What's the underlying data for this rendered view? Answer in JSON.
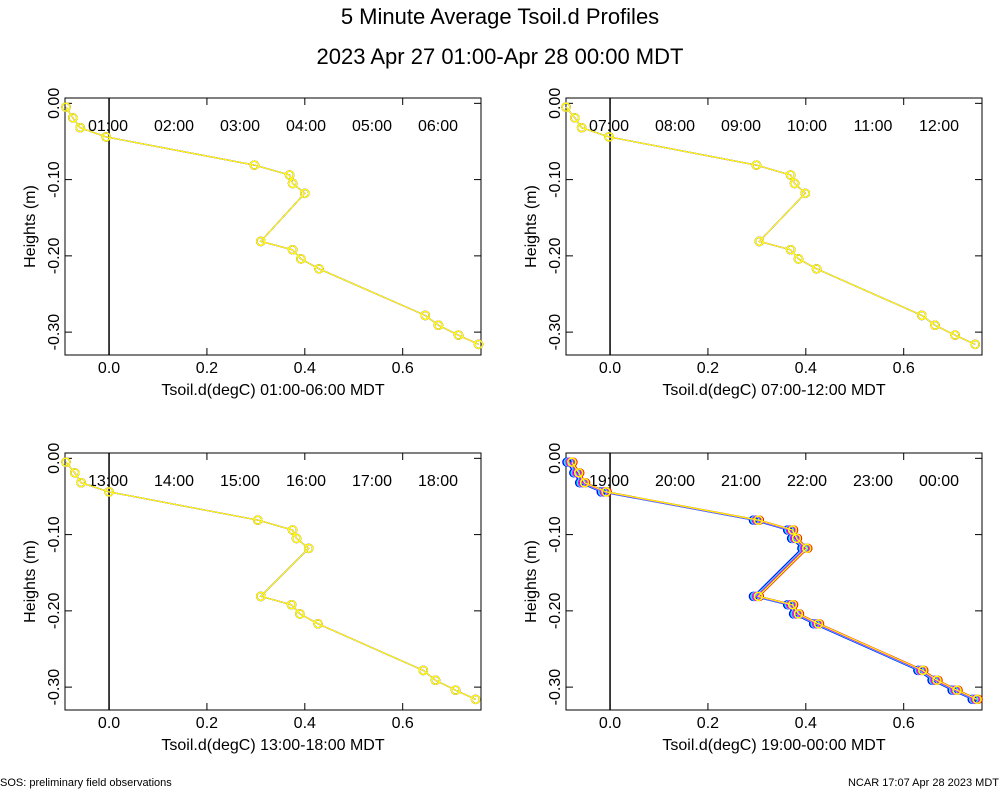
{
  "page": {
    "title": "5 Minute Average Tsoil.d Profiles",
    "subtitle": "2023 Apr 27 01:00-Apr 28 00:00 MDT",
    "footer_left": "SOS: preliminary field observations",
    "footer_right": "NCAR 17:07 Apr 28 2023 MDT"
  },
  "chart_data": [
    {
      "type": "line",
      "xlabel": "Tsoil.d(degC) 01:00-06:00 MDT",
      "ylabel": "Heights (m)",
      "xlim": [
        -0.09,
        0.76
      ],
      "ylim": [
        -0.33,
        0.007
      ],
      "xticks": [
        {
          "value": 0,
          "label": "0.0"
        },
        0.2,
        0.4,
        0.6
      ],
      "yticks": [
        {
          "value": 0,
          "label": "0.00"
        },
        {
          "value": -0.1,
          "label": "-0.10"
        },
        {
          "value": -0.2,
          "label": "-0.20"
        },
        {
          "value": -0.3,
          "label": "-0.30"
        }
      ],
      "zero_line": true,
      "y": [
        -0.005,
        -0.019,
        -0.032,
        -0.044,
        -0.081,
        -0.094,
        -0.105,
        -0.118,
        -0.181,
        -0.192,
        -0.204,
        -0.217,
        -0.278,
        -0.291,
        -0.304,
        -0.316
      ],
      "series": [
        {
          "name": "01:00",
          "color": "#ff0000",
          "x": [
            -0.088,
            -0.074,
            -0.059,
            -0.006,
            0.297,
            0.369,
            0.375,
            0.4,
            0.31,
            0.375,
            0.392,
            0.429,
            0.646,
            0.673,
            0.714,
            0.755
          ]
        },
        {
          "name": "02:00",
          "color": "#00cc00",
          "x": [
            -0.088,
            -0.074,
            -0.059,
            -0.006,
            0.297,
            0.369,
            0.375,
            0.4,
            0.31,
            0.375,
            0.392,
            0.429,
            0.646,
            0.673,
            0.714,
            0.755
          ]
        },
        {
          "name": "03:00",
          "color": "#0000ff",
          "x": [
            -0.088,
            -0.074,
            -0.059,
            -0.006,
            0.297,
            0.369,
            0.375,
            0.4,
            0.31,
            0.375,
            0.392,
            0.429,
            0.646,
            0.673,
            0.714,
            0.755
          ]
        },
        {
          "name": "04:00",
          "color": "#00ffff",
          "x": [
            -0.088,
            -0.074,
            -0.059,
            -0.006,
            0.297,
            0.369,
            0.375,
            0.4,
            0.31,
            0.375,
            0.392,
            0.429,
            0.646,
            0.673,
            0.714,
            0.755
          ]
        },
        {
          "name": "05:00",
          "color": "#ff00ff",
          "x": [
            -0.088,
            -0.074,
            -0.059,
            -0.006,
            0.297,
            0.369,
            0.375,
            0.4,
            0.31,
            0.375,
            0.392,
            0.429,
            0.646,
            0.673,
            0.714,
            0.755
          ]
        },
        {
          "name": "06:00",
          "color": "#ffff00",
          "x": [
            -0.088,
            -0.074,
            -0.059,
            -0.006,
            0.297,
            0.369,
            0.375,
            0.4,
            0.31,
            0.375,
            0.392,
            0.429,
            0.646,
            0.673,
            0.714,
            0.755
          ]
        }
      ]
    },
    {
      "type": "line",
      "xlabel": "Tsoil.d(degC) 07:00-12:00 MDT",
      "ylabel": "Heights (m)",
      "xlim": [
        -0.09,
        0.76
      ],
      "ylim": [
        -0.33,
        0.007
      ],
      "xticks": [
        {
          "value": 0,
          "label": "0.0"
        },
        0.2,
        0.4,
        0.6
      ],
      "yticks": [
        {
          "value": 0,
          "label": "0.00"
        },
        {
          "value": -0.1,
          "label": "-0.10"
        },
        {
          "value": -0.2,
          "label": "-0.20"
        },
        {
          "value": -0.3,
          "label": "-0.30"
        }
      ],
      "zero_line": true,
      "y": [
        -0.005,
        -0.019,
        -0.032,
        -0.044,
        -0.081,
        -0.094,
        -0.105,
        -0.118,
        -0.181,
        -0.192,
        -0.204,
        -0.217,
        -0.278,
        -0.291,
        -0.304,
        -0.316
      ],
      "series": [
        {
          "name": "07:00",
          "color": "#ff0000",
          "x": [
            -0.09,
            -0.072,
            -0.058,
            -0.002,
            0.299,
            0.369,
            0.377,
            0.399,
            0.305,
            0.369,
            0.385,
            0.422,
            0.637,
            0.664,
            0.705,
            0.746
          ]
        },
        {
          "name": "08:00",
          "color": "#00cc00",
          "x": [
            -0.09,
            -0.072,
            -0.058,
            -0.002,
            0.299,
            0.369,
            0.377,
            0.399,
            0.305,
            0.369,
            0.385,
            0.422,
            0.637,
            0.664,
            0.705,
            0.746
          ]
        },
        {
          "name": "09:00",
          "color": "#0000ff",
          "x": [
            -0.09,
            -0.072,
            -0.058,
            -0.002,
            0.299,
            0.369,
            0.377,
            0.399,
            0.305,
            0.369,
            0.385,
            0.422,
            0.637,
            0.664,
            0.705,
            0.746
          ]
        },
        {
          "name": "10:00",
          "color": "#00ffff",
          "x": [
            -0.09,
            -0.072,
            -0.058,
            -0.002,
            0.299,
            0.369,
            0.377,
            0.399,
            0.305,
            0.369,
            0.385,
            0.422,
            0.637,
            0.664,
            0.705,
            0.746
          ]
        },
        {
          "name": "11:00",
          "color": "#ff00ff",
          "x": [
            -0.09,
            -0.072,
            -0.058,
            -0.002,
            0.299,
            0.369,
            0.377,
            0.399,
            0.305,
            0.369,
            0.385,
            0.422,
            0.637,
            0.664,
            0.705,
            0.746
          ]
        },
        {
          "name": "12:00",
          "color": "#ffff00",
          "x": [
            -0.09,
            -0.072,
            -0.058,
            -0.002,
            0.299,
            0.369,
            0.377,
            0.399,
            0.305,
            0.369,
            0.385,
            0.422,
            0.637,
            0.664,
            0.705,
            0.746
          ]
        }
      ]
    },
    {
      "type": "line",
      "xlabel": "Tsoil.d(degC) 13:00-18:00 MDT",
      "ylabel": "Heights (m)",
      "xlim": [
        -0.09,
        0.76
      ],
      "ylim": [
        -0.33,
        0.007
      ],
      "xticks": [
        {
          "value": 0,
          "label": "0.0"
        },
        0.2,
        0.4,
        0.6
      ],
      "yticks": [
        {
          "value": 0,
          "label": "0.00"
        },
        {
          "value": -0.1,
          "label": "-0.10"
        },
        {
          "value": -0.2,
          "label": "-0.20"
        },
        {
          "value": -0.3,
          "label": "-0.30"
        }
      ],
      "zero_line": true,
      "y": [
        -0.005,
        -0.019,
        -0.032,
        -0.044,
        -0.081,
        -0.094,
        -0.105,
        -0.118,
        -0.181,
        -0.192,
        -0.204,
        -0.217,
        -0.278,
        -0.291,
        -0.304,
        -0.316
      ],
      "series": [
        {
          "name": "13:00",
          "color": "#ff0000",
          "x": [
            -0.088,
            -0.07,
            -0.057,
            0.0,
            0.304,
            0.375,
            0.383,
            0.408,
            0.31,
            0.373,
            0.39,
            0.427,
            0.642,
            0.667,
            0.708,
            0.749
          ]
        },
        {
          "name": "14:00",
          "color": "#00cc00",
          "x": [
            -0.088,
            -0.07,
            -0.057,
            0.0,
            0.304,
            0.375,
            0.383,
            0.408,
            0.31,
            0.373,
            0.39,
            0.427,
            0.642,
            0.667,
            0.708,
            0.749
          ]
        },
        {
          "name": "15:00",
          "color": "#0000ff",
          "x": [
            -0.088,
            -0.07,
            -0.057,
            0.0,
            0.304,
            0.375,
            0.383,
            0.408,
            0.31,
            0.373,
            0.39,
            0.427,
            0.642,
            0.667,
            0.708,
            0.749
          ]
        },
        {
          "name": "16:00",
          "color": "#00ffff",
          "x": [
            -0.088,
            -0.07,
            -0.057,
            0.0,
            0.304,
            0.375,
            0.383,
            0.408,
            0.31,
            0.373,
            0.39,
            0.427,
            0.642,
            0.667,
            0.708,
            0.749
          ]
        },
        {
          "name": "17:00",
          "color": "#ff00ff",
          "x": [
            -0.088,
            -0.07,
            -0.057,
            0.0,
            0.304,
            0.375,
            0.383,
            0.408,
            0.31,
            0.373,
            0.39,
            0.427,
            0.642,
            0.667,
            0.708,
            0.749
          ]
        },
        {
          "name": "18:00",
          "color": "#ffff00",
          "x": [
            -0.088,
            -0.07,
            -0.057,
            0.0,
            0.304,
            0.375,
            0.383,
            0.408,
            0.31,
            0.373,
            0.39,
            0.427,
            0.642,
            0.667,
            0.708,
            0.749
          ]
        }
      ]
    },
    {
      "type": "line",
      "xlabel": "Tsoil.d(degC) 19:00-00:00 MDT",
      "ylabel": "Heights (m)",
      "xlim": [
        -0.09,
        0.76
      ],
      "ylim": [
        -0.33,
        0.007
      ],
      "xticks": [
        {
          "value": 0,
          "label": "0.0"
        },
        0.2,
        0.4,
        0.6
      ],
      "yticks": [
        {
          "value": 0,
          "label": "0.00"
        },
        {
          "value": -0.1,
          "label": "-0.10"
        },
        {
          "value": -0.2,
          "label": "-0.20"
        },
        {
          "value": -0.3,
          "label": "-0.30"
        }
      ],
      "zero_line": true,
      "y": [
        -0.005,
        -0.019,
        -0.032,
        -0.044,
        -0.081,
        -0.094,
        -0.105,
        -0.118,
        -0.181,
        -0.192,
        -0.204,
        -0.217,
        -0.278,
        -0.291,
        -0.304,
        -0.316
      ],
      "series": [
        {
          "name": "19:00",
          "color": "#ff0000",
          "x": [
            -0.076,
            -0.062,
            -0.05,
            -0.006,
            0.305,
            0.375,
            0.383,
            0.404,
            0.305,
            0.375,
            0.387,
            0.428,
            0.641,
            0.67,
            0.711,
            0.752
          ]
        },
        {
          "name": "20:00",
          "color": "#00cc00",
          "x": [
            -0.079,
            -0.065,
            -0.053,
            -0.009,
            0.302,
            0.372,
            0.38,
            0.401,
            0.302,
            0.372,
            0.384,
            0.425,
            0.638,
            0.667,
            0.708,
            0.749
          ]
        },
        {
          "name": "21:00",
          "color": "#0000ff",
          "x": [
            -0.088,
            -0.074,
            -0.062,
            -0.018,
            0.293,
            0.363,
            0.371,
            0.392,
            0.293,
            0.363,
            0.375,
            0.416,
            0.629,
            0.658,
            0.699,
            0.74
          ]
        },
        {
          "name": "22:00",
          "color": "#00ffff",
          "x": [
            -0.085,
            -0.071,
            -0.059,
            -0.015,
            0.296,
            0.366,
            0.374,
            0.395,
            0.296,
            0.366,
            0.378,
            0.419,
            0.632,
            0.661,
            0.702,
            0.743
          ]
        },
        {
          "name": "23:00",
          "color": "#ff00ff",
          "x": [
            -0.082,
            -0.068,
            -0.056,
            -0.012,
            0.299,
            0.369,
            0.377,
            0.398,
            0.299,
            0.369,
            0.381,
            0.422,
            0.635,
            0.664,
            0.705,
            0.746
          ]
        },
        {
          "name": "00:00",
          "color": "#ffff00",
          "x": [
            -0.078,
            -0.064,
            -0.052,
            -0.008,
            0.303,
            0.373,
            0.381,
            0.402,
            0.303,
            0.373,
            0.385,
            0.426,
            0.639,
            0.668,
            0.709,
            0.75
          ]
        }
      ]
    }
  ]
}
